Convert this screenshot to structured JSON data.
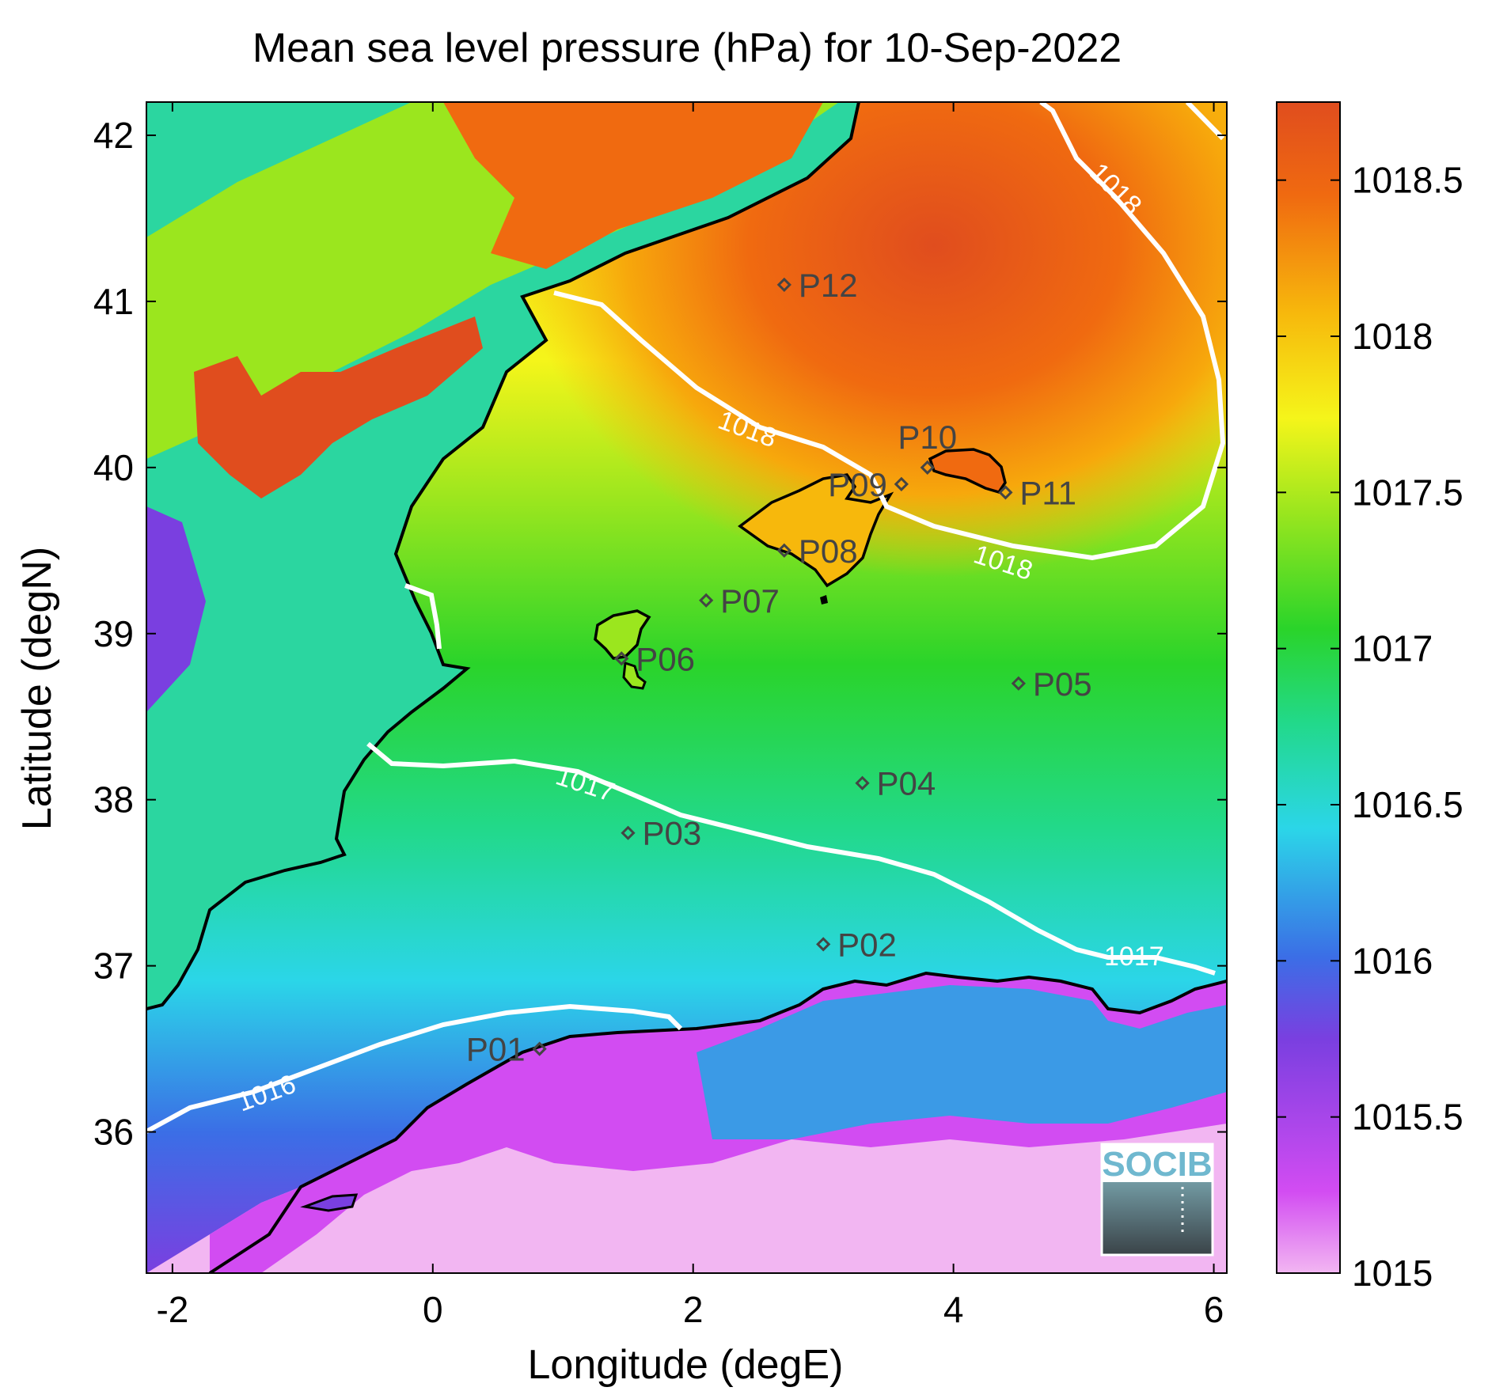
{
  "chart_data": {
    "type": "heatmap",
    "title": "Mean sea level pressure (hPa) for 10-Sep-2022",
    "xlabel": "Longitude (degE)",
    "ylabel": "Latitude (degN)",
    "xlim": [
      -2.2,
      6.1
    ],
    "ylim": [
      35.15,
      42.2
    ],
    "x_ticks": [
      -2,
      0,
      2,
      4,
      6
    ],
    "x_tick_labels": [
      "-2",
      "0",
      "2",
      "4",
      "6"
    ],
    "y_ticks": [
      36,
      37,
      38,
      39,
      40,
      41,
      42
    ],
    "y_tick_labels": [
      "36",
      "37",
      "38",
      "39",
      "40",
      "41",
      "42"
    ],
    "colorbar": {
      "range": [
        1015,
        1018.75
      ],
      "ticks": [
        1015,
        1015.5,
        1016,
        1016.5,
        1017,
        1017.5,
        1018,
        1018.5
      ],
      "tick_labels": [
        "1015",
        "1015.5",
        "1016",
        "1016.5",
        "1017",
        "1017.5",
        "1018",
        "1018.5"
      ],
      "colors": [
        "#f2b6f2",
        "#d24cf2",
        "#7a3fe0",
        "#3b6ee6",
        "#2bd6e8",
        "#22d98a",
        "#2ad42a",
        "#9be61e",
        "#f5f51a",
        "#f7b80c",
        "#f06a10",
        "#e04d1e"
      ]
    },
    "contour_labels": [
      "1018",
      "1018",
      "1018",
      "1017",
      "1017",
      "1016"
    ],
    "stations": [
      {
        "name": "P01",
        "lon": 0.82,
        "lat": 36.5
      },
      {
        "name": "P02",
        "lon": 3.0,
        "lat": 37.13
      },
      {
        "name": "P03",
        "lon": 1.5,
        "lat": 37.8
      },
      {
        "name": "P04",
        "lon": 3.3,
        "lat": 38.1
      },
      {
        "name": "P05",
        "lon": 4.5,
        "lat": 38.7
      },
      {
        "name": "P06",
        "lon": 1.45,
        "lat": 38.85
      },
      {
        "name": "P07",
        "lon": 2.1,
        "lat": 39.2
      },
      {
        "name": "P08",
        "lon": 2.7,
        "lat": 39.5
      },
      {
        "name": "P09",
        "lon": 3.6,
        "lat": 39.9
      },
      {
        "name": "P10",
        "lon": 3.8,
        "lat": 40.0
      },
      {
        "name": "P11",
        "lon": 4.4,
        "lat": 39.85
      },
      {
        "name": "P12",
        "lon": 2.7,
        "lat": 41.1
      }
    ],
    "grid": false
  },
  "logo": {
    "text": "SOCIB"
  }
}
